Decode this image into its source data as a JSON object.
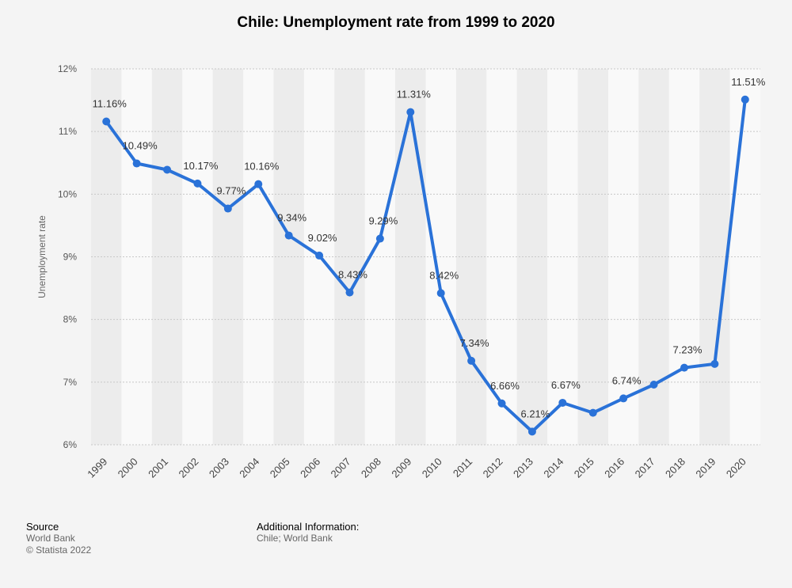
{
  "title": "Chile: Unemployment rate from 1999 to 2020",
  "colors": {
    "line": "#2a72d8",
    "grid": "#c8c8c8",
    "band_dark": "#ececec",
    "band_light": "#f9f9f9",
    "background": "#f4f4f4"
  },
  "chart_data": {
    "type": "line",
    "title": "Chile: Unemployment rate from 1999 to 2020",
    "xlabel": "",
    "ylabel": "Unemployment rate",
    "ylim": [
      6,
      12
    ],
    "yticks": [
      "6%",
      "7%",
      "8%",
      "9%",
      "10%",
      "11%",
      "12%"
    ],
    "grid": true,
    "categories": [
      "1999",
      "2000",
      "2001",
      "2002",
      "2003",
      "2004",
      "2005",
      "2006",
      "2007",
      "2008",
      "2009",
      "2010",
      "2011",
      "2012",
      "2013",
      "2014",
      "2015",
      "2016",
      "2017",
      "2018",
      "2019",
      "2020"
    ],
    "series": [
      {
        "values": [
          11.16,
          10.49,
          10.39,
          10.17,
          9.77,
          10.16,
          9.34,
          9.02,
          8.43,
          9.29,
          11.31,
          8.42,
          7.34,
          6.66,
          6.21,
          6.67,
          6.51,
          6.74,
          6.96,
          7.23,
          7.29,
          11.51
        ],
        "labels": [
          "11.16%",
          "10.49%",
          "",
          "10.17%",
          "9.77%",
          "10.16%",
          "9.34%",
          "9.02%",
          "8.43%",
          "9.29%",
          "11.31%",
          "8.42%",
          "7.34%",
          "6.66%",
          "6.21%",
          "6.67%",
          "",
          "6.74%",
          "",
          "7.23%",
          "",
          "11.51%"
        ]
      }
    ]
  },
  "footer": {
    "source_heading": "Source",
    "source_line1": "World Bank",
    "source_line2": "© Statista 2022",
    "info_heading": "Additional Information:",
    "info_line1": "Chile; World Bank"
  }
}
